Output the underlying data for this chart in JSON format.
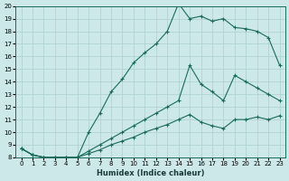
{
  "xlabel": "Humidex (Indice chaleur)",
  "bg_color": "#cce8e8",
  "line_color": "#1a6b5a",
  "grid_color": "#aacfcf",
  "xmin": 0,
  "xmax": 23,
  "ymin": 8,
  "ymax": 20,
  "yticks": [
    8,
    9,
    10,
    11,
    12,
    13,
    14,
    15,
    16,
    17,
    18,
    19,
    20
  ],
  "xticks": [
    0,
    1,
    2,
    3,
    4,
    5,
    6,
    7,
    8,
    9,
    10,
    11,
    12,
    13,
    14,
    15,
    16,
    17,
    18,
    19,
    20,
    21,
    22,
    23
  ],
  "line1_x": [
    0,
    1,
    2,
    3,
    4,
    5,
    6,
    7,
    8,
    9,
    10,
    11,
    12,
    13,
    14,
    15,
    16,
    17,
    18,
    19,
    20,
    21,
    22,
    23
  ],
  "line1_y": [
    8.7,
    8.2,
    8.0,
    8.0,
    8.0,
    8.0,
    10.0,
    11.5,
    13.2,
    14.2,
    15.5,
    16.3,
    17.0,
    18.0,
    20.2,
    19.0,
    19.2,
    18.8,
    19.0,
    18.3,
    18.2,
    18.0,
    17.5,
    15.3
  ],
  "line2_x": [
    0,
    1,
    2,
    3,
    4,
    5,
    6,
    7,
    8,
    9,
    10,
    11,
    12,
    13,
    14,
    15,
    16,
    17,
    18,
    19,
    20,
    21,
    22,
    23
  ],
  "line2_y": [
    8.7,
    8.2,
    8.0,
    8.0,
    8.0,
    8.0,
    8.5,
    9.0,
    9.5,
    10.0,
    10.5,
    11.0,
    11.5,
    12.0,
    12.5,
    15.3,
    13.8,
    13.2,
    12.5,
    14.5,
    14.0,
    13.5,
    13.0,
    12.5
  ],
  "line3_x": [
    0,
    1,
    2,
    3,
    4,
    5,
    6,
    7,
    8,
    9,
    10,
    11,
    12,
    13,
    14,
    15,
    16,
    17,
    18,
    19,
    20,
    21,
    22,
    23
  ],
  "line3_y": [
    8.7,
    8.2,
    8.0,
    8.0,
    8.0,
    8.0,
    8.3,
    8.6,
    9.0,
    9.3,
    9.6,
    10.0,
    10.3,
    10.6,
    11.0,
    11.4,
    10.8,
    10.5,
    10.3,
    11.0,
    11.0,
    11.2,
    11.0,
    11.3
  ]
}
